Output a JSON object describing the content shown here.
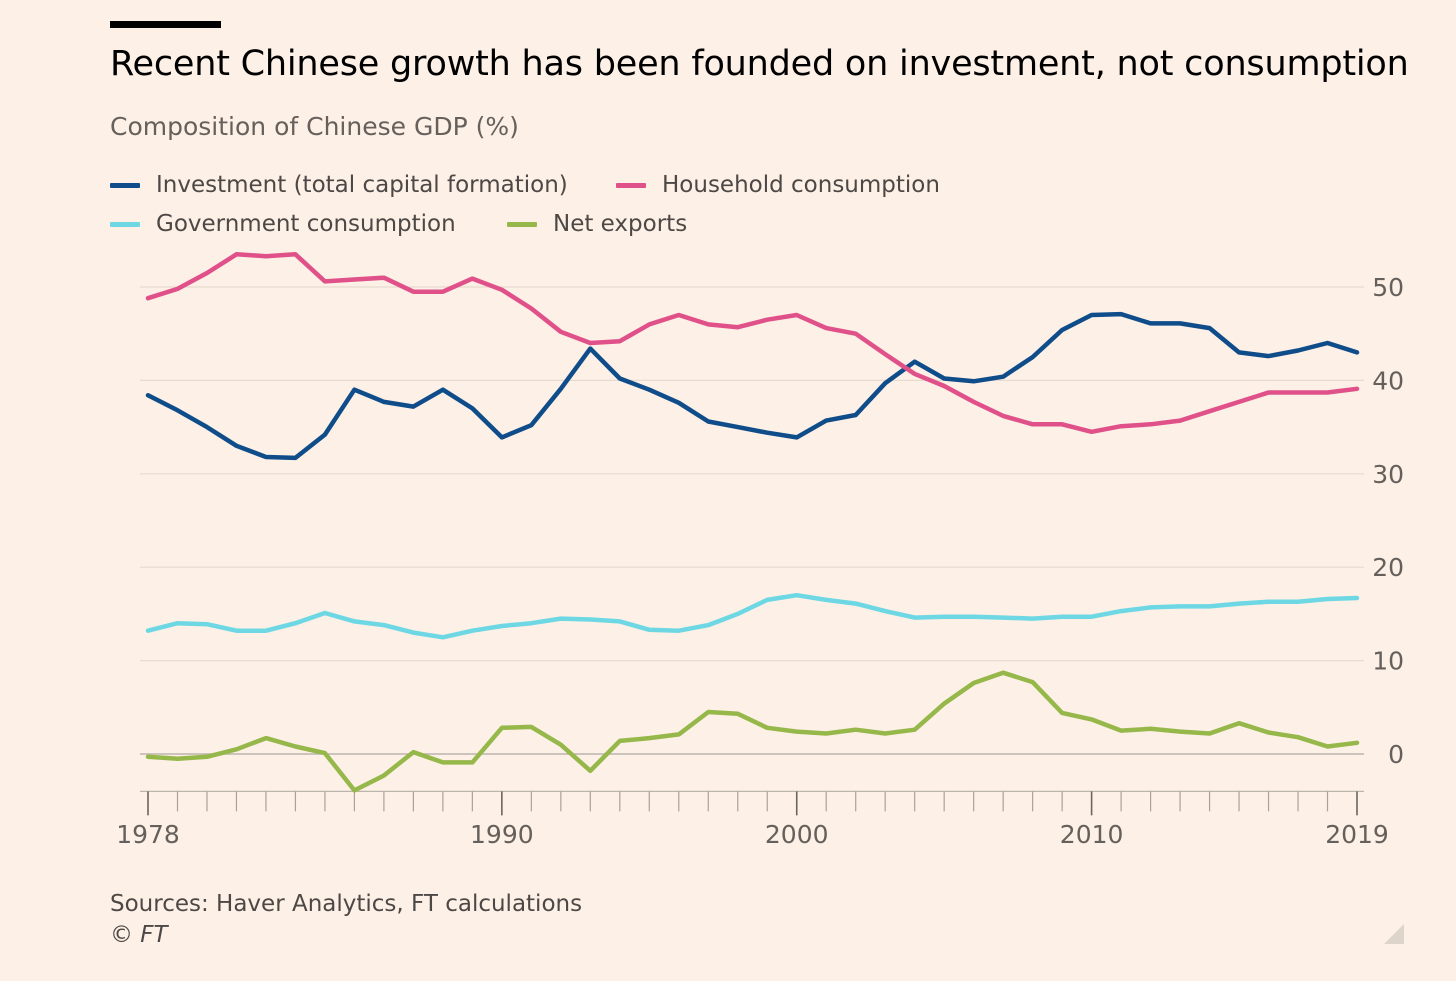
{
  "chart_data": {
    "type": "line",
    "title": "Recent Chinese growth has been founded on investment, not consumption",
    "subtitle": "Composition of Chinese GDP (%)",
    "xlabel": "",
    "ylabel": "",
    "x": [
      1978,
      1979,
      1980,
      1981,
      1982,
      1983,
      1984,
      1985,
      1986,
      1987,
      1988,
      1989,
      1990,
      1991,
      1992,
      1993,
      1994,
      1995,
      1996,
      1997,
      1998,
      1999,
      2000,
      2001,
      2002,
      2003,
      2004,
      2005,
      2006,
      2007,
      2008,
      2009,
      2010,
      2011,
      2012,
      2013,
      2014,
      2015,
      2016,
      2017,
      2018,
      2019
    ],
    "xlim": [
      1978,
      2019
    ],
    "ylim": [
      -4,
      53
    ],
    "x_ticks": [
      "1978",
      "1990",
      "2000",
      "2010",
      "2019"
    ],
    "y_ticks": [
      "0",
      "10",
      "20",
      "30",
      "40",
      "50"
    ],
    "grid": true,
    "legend_position": "top-left",
    "series": [
      {
        "name": "Investment (total capital formation)",
        "color": "#0f4c8a",
        "values": [
          38.4,
          36.8,
          35.0,
          33.0,
          31.8,
          31.7,
          34.2,
          39.0,
          37.7,
          37.2,
          39.0,
          37.0,
          33.9,
          35.2,
          39.1,
          43.4,
          40.2,
          39.0,
          37.6,
          35.6,
          35.0,
          34.4,
          33.9,
          35.7,
          36.3,
          39.7,
          42.0,
          40.2,
          39.9,
          40.4,
          42.5,
          45.4,
          47.0,
          47.1,
          46.1,
          46.1,
          45.6,
          43.0,
          42.6,
          43.2,
          44.0,
          43.0
        ]
      },
      {
        "name": "Household consumption",
        "color": "#e0518a",
        "values": [
          48.8,
          49.8,
          51.5,
          53.5,
          53.3,
          53.5,
          50.6,
          50.8,
          51.0,
          49.5,
          49.5,
          50.9,
          49.7,
          47.7,
          45.2,
          44.0,
          44.2,
          46.0,
          47.0,
          46.0,
          45.7,
          46.5,
          47.0,
          45.6,
          45.0,
          42.8,
          40.7,
          39.4,
          37.7,
          36.2,
          35.3,
          35.3,
          34.5,
          35.1,
          35.3,
          35.7,
          36.7,
          37.7,
          38.7,
          38.7,
          38.7,
          39.1
        ]
      },
      {
        "name": "Government consumption",
        "color": "#6dd8e4",
        "values": [
          13.2,
          14.0,
          13.9,
          13.2,
          13.2,
          14.0,
          15.1,
          14.2,
          13.8,
          13.0,
          12.5,
          13.2,
          13.7,
          14.0,
          14.5,
          14.4,
          14.2,
          13.3,
          13.2,
          13.8,
          15.0,
          16.5,
          17.0,
          16.5,
          16.1,
          15.3,
          14.6,
          14.7,
          14.7,
          14.6,
          14.5,
          14.7,
          14.7,
          15.3,
          15.7,
          15.8,
          15.8,
          16.1,
          16.3,
          16.3,
          16.6,
          16.7
        ]
      },
      {
        "name": "Net exports",
        "color": "#96b84a",
        "values": [
          -0.3,
          -0.5,
          -0.3,
          0.5,
          1.7,
          0.8,
          0.1,
          -3.9,
          -2.3,
          0.2,
          -0.9,
          -0.9,
          2.8,
          2.9,
          1.0,
          -1.8,
          1.4,
          1.7,
          2.1,
          4.5,
          4.3,
          2.8,
          2.4,
          2.2,
          2.6,
          2.2,
          2.6,
          5.4,
          7.6,
          8.7,
          7.7,
          4.4,
          3.7,
          2.5,
          2.7,
          2.4,
          2.2,
          3.3,
          2.3,
          1.8,
          0.8,
          1.2
        ]
      }
    ]
  },
  "footer": {
    "source": "Sources: Haver Analytics, FT calculations",
    "copyright": "© FT"
  }
}
